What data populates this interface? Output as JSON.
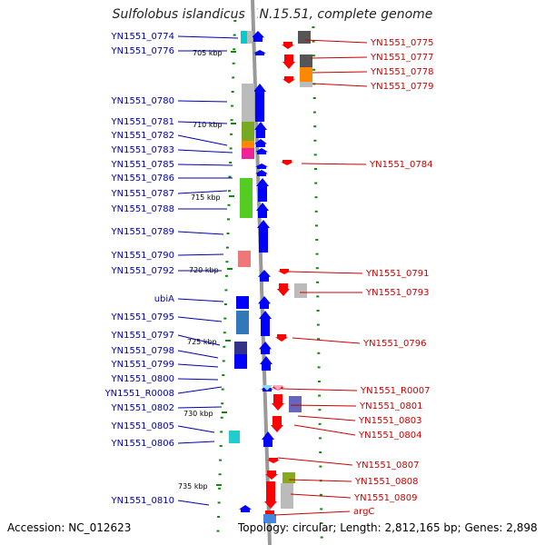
{
  "title": "Sulfolobus islandicus Y.N.15.51, complete genome",
  "accession": "Accession: NC_012623",
  "topology": "Topology: circular; Length: 2,812,165 bp; Genes: 2,898",
  "colors": {
    "left_label": "#0000aa",
    "right_label": "#cc0000",
    "rna_left_label": "#22aacc",
    "rna_right_label": "#ee88bb",
    "forward_arrow": "#0000ff",
    "reverse_arrow": "#ff0000",
    "tick_mark": "#118811",
    "backbone": "#999999"
  },
  "ticks": [
    "705 kbp",
    "710 kbp",
    "715 kbp",
    "720 kbp",
    "725 kbp",
    "730 kbp",
    "735 kbp"
  ],
  "left_labels": [
    "YN1551_0774",
    "YN1551_0776",
    "YN1551_0780",
    "YN1551_0781",
    "YN1551_0782",
    "YN1551_0783",
    "YN1551_0785",
    "YN1551_0786",
    "YN1551_0787",
    "YN1551_0788",
    "YN1551_0789",
    "YN1551_0790",
    "YN1551_0792",
    "ubiA",
    "YN1551_0795",
    "YN1551_0797",
    "YN1551_0798",
    "YN1551_0799",
    "YN1551_0800",
    "YN1551_R0008",
    "YN1551_0802",
    "YN1551_0805",
    "YN1551_0806",
    "YN1551_0810"
  ],
  "right_labels": [
    "YN1551_0775",
    "YN1551_0777",
    "YN1551_0778",
    "YN1551_0779",
    "YN1551_0784",
    "YN1551_0791",
    "YN1551_0793",
    "YN1551_0796",
    "YN1551_R0007",
    "YN1551_0801",
    "YN1551_0803",
    "YN1551_0804",
    "YN1551_0807",
    "YN1551_0808",
    "YN1551_0809",
    "argC"
  ],
  "left_arrow_colors": [
    "#00cccc",
    "#bbbbbb",
    "#77aa22",
    "#ff8800",
    "#ee2299",
    "#55cc22",
    "#ee7777",
    "#3377bb",
    "#333388",
    "#22cccc"
  ],
  "right_arrow_colors": [
    "#555555",
    "#ff8800",
    "#bbbbbb",
    "#6666bb",
    "#88aa22",
    "#bbbbbb"
  ]
}
